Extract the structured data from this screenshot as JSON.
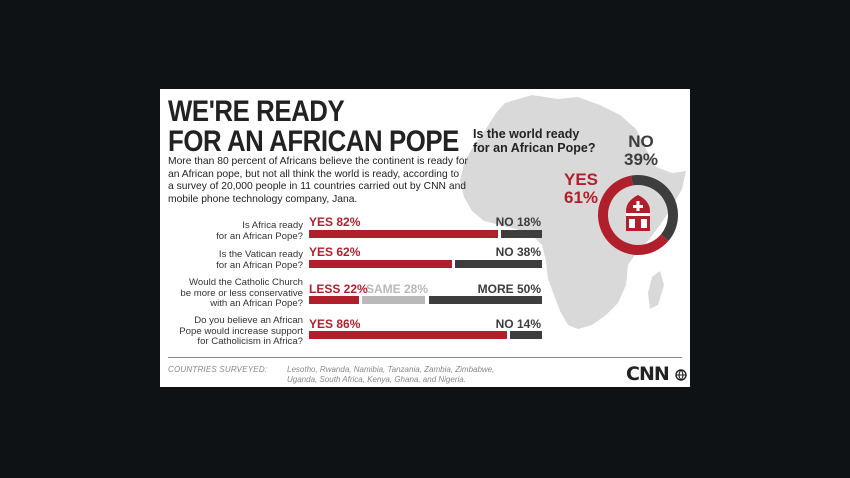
{
  "header": {
    "title_line1": "WE'RE READY",
    "title_line2": "FOR AN AFRICAN POPE",
    "intro_lines": [
      "More than 80 percent of Africans believe the continent is ready for",
      "an African pope, but not all think the world is ready, according to",
      "a survey of 20,000 people in 11 countries carried out by CNN and",
      "mobile phone technology company, Jana."
    ]
  },
  "colors": {
    "red": "#b21f2c",
    "dark": "#3d3d3d",
    "grey": "#b9b9b9",
    "map": "#d9d9d9"
  },
  "chart_data": [
    {
      "type": "bar",
      "orientation": "horizontal",
      "stacked": true,
      "unit": "percent",
      "rows": [
        {
          "question_lines": [
            "Is Africa ready",
            "for an African Pope?"
          ],
          "segments": [
            {
              "label": "YES 82%",
              "category": "YES",
              "value": 82,
              "color": "#b21f2c"
            },
            {
              "label": "NO 18%",
              "category": "NO",
              "value": 18,
              "color": "#3d3d3d"
            }
          ]
        },
        {
          "question_lines": [
            "Is the Vatican ready",
            "for an African Pope?"
          ],
          "segments": [
            {
              "label": "YES 62%",
              "category": "YES",
              "value": 62,
              "color": "#b21f2c"
            },
            {
              "label": "NO 38%",
              "category": "NO",
              "value": 38,
              "color": "#3d3d3d"
            }
          ]
        },
        {
          "question_lines": [
            "Would the Catholic Church",
            "be more or less conservative",
            "with an African Pope?"
          ],
          "segments": [
            {
              "label": "LESS 22%",
              "category": "LESS",
              "value": 22,
              "color": "#b21f2c"
            },
            {
              "label": "SAME 28%",
              "category": "SAME",
              "value": 28,
              "color": "#b9b9b9"
            },
            {
              "label": "MORE 50%",
              "category": "MORE",
              "value": 50,
              "color": "#3d3d3d"
            }
          ]
        },
        {
          "question_lines": [
            "Do you believe an African",
            "Pope would increase support",
            "for Catholicism in Africa?"
          ],
          "segments": [
            {
              "label": "YES 86%",
              "category": "YES",
              "value": 86,
              "color": "#b21f2c"
            },
            {
              "label": "NO 14%",
              "category": "NO",
              "value": 14,
              "color": "#3d3d3d"
            }
          ]
        }
      ]
    },
    {
      "type": "pie",
      "style": "donut",
      "question_lines": [
        "Is the world ready",
        "for an African Pope?"
      ],
      "slices": [
        {
          "label": "YES",
          "value": 61,
          "pct_text": "61%",
          "color": "#b21f2c"
        },
        {
          "label": "NO",
          "value": 39,
          "pct_text": "39%",
          "color": "#3d3d3d"
        }
      ]
    }
  ],
  "footer": {
    "label": "COUNTRIES SURVEYED:",
    "countries_lines": [
      "Lesotho, Rwanda, Namibia, Tanzania, Zambia, Zimbabwe,",
      "Uganda, South Africa, Kenya, Ghana, and Nigeria."
    ],
    "logo": "CNN",
    "logo_icon": "globe-icon"
  }
}
